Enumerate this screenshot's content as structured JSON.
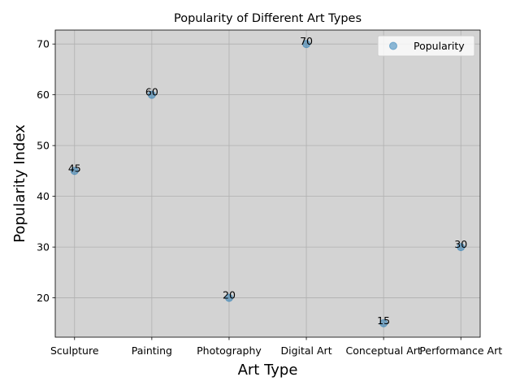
{
  "chart_data": {
    "type": "scatter",
    "title": "Popularity of Different Art Types",
    "xlabel": "Art Type",
    "ylabel": "Popularity Index",
    "categories": [
      "Sculpture",
      "Painting",
      "Photography",
      "Digital Art",
      "Conceptual Art",
      "Performance Art"
    ],
    "series": [
      {
        "name": "Popularity",
        "values": [
          45,
          60,
          20,
          70,
          15,
          30
        ]
      }
    ],
    "data_labels": [
      "45",
      "60",
      "20",
      "70",
      "15",
      "30"
    ],
    "yticks": [
      20,
      30,
      40,
      50,
      60,
      70
    ],
    "ylim": [
      12.25,
      72.75
    ],
    "grid": true,
    "legend": "top-right",
    "colors": {
      "background": "#d3d3d3",
      "marker": "#1f77b4",
      "grid": "#b0b0b0"
    }
  }
}
